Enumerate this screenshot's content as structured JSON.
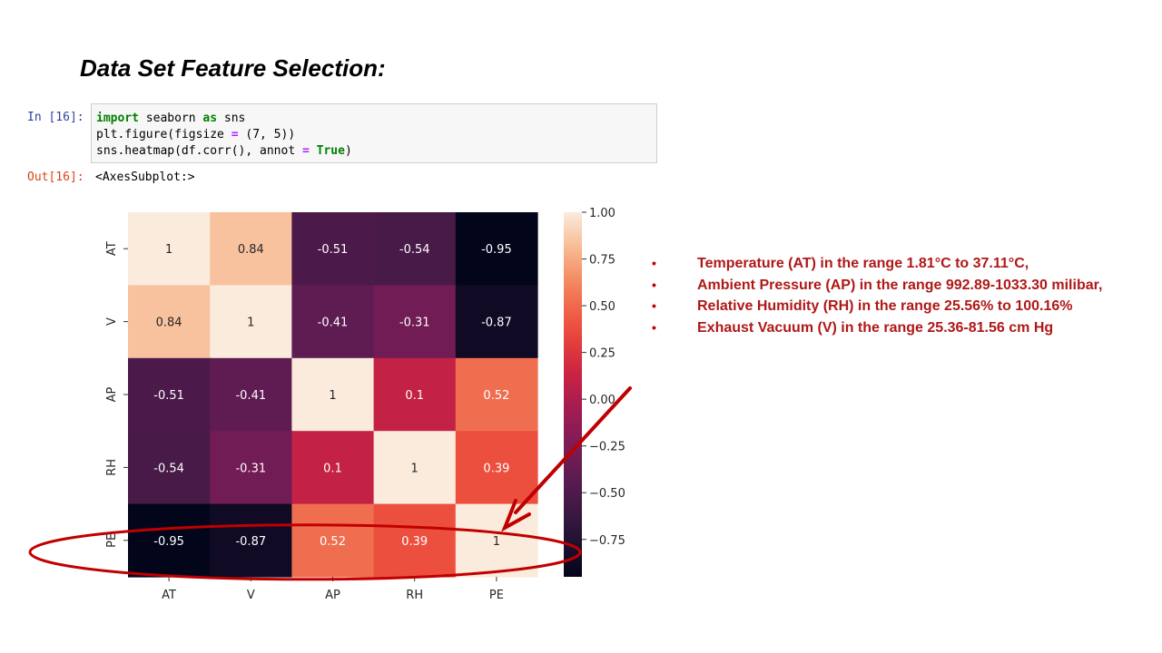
{
  "slide": {
    "title": "Data Set Feature Selection:"
  },
  "notebook": {
    "in_prompt": "In [16]:",
    "code_lines": [
      [
        {
          "t": "import",
          "k": "kw"
        },
        {
          "t": " seaborn ",
          "k": ""
        },
        {
          "t": "as",
          "k": "kw"
        },
        {
          "t": " sns",
          "k": ""
        }
      ],
      [
        {
          "t": "plt.figure(figsize ",
          "k": ""
        },
        {
          "t": "=",
          "k": "op"
        },
        {
          "t": " (7, 5))",
          "k": ""
        }
      ],
      [
        {
          "t": "sns.heatmap(df.corr(), annot ",
          "k": ""
        },
        {
          "t": "=",
          "k": "op"
        },
        {
          "t": " ",
          "k": ""
        },
        {
          "t": "True",
          "k": "kw"
        },
        {
          "t": ")",
          "k": ""
        }
      ]
    ],
    "out_prompt": "Out[16]:",
    "out_text": "<AxesSubplot:>"
  },
  "chart_data": {
    "type": "heatmap",
    "title": "",
    "xlabel": "",
    "ylabel": "",
    "x_categories": [
      "AT",
      "V",
      "AP",
      "RH",
      "PE"
    ],
    "y_categories": [
      "AT",
      "V",
      "AP",
      "RH",
      "PE"
    ],
    "values": [
      [
        1,
        0.84,
        -0.51,
        -0.54,
        -0.95
      ],
      [
        0.84,
        1,
        -0.41,
        -0.31,
        -0.87
      ],
      [
        -0.51,
        -0.41,
        1,
        0.1,
        0.52
      ],
      [
        -0.54,
        -0.31,
        0.1,
        1,
        0.39
      ],
      [
        -0.95,
        -0.87,
        0.52,
        0.39,
        1
      ]
    ],
    "annotations": [
      [
        "1",
        "0.84",
        "-0.51",
        "-0.54",
        "-0.95"
      ],
      [
        "0.84",
        "1",
        "-0.41",
        "-0.31",
        "-0.87"
      ],
      [
        "-0.51",
        "-0.41",
        "1",
        "0.1",
        "0.52"
      ],
      [
        "-0.54",
        "-0.31",
        "0.1",
        "1",
        "0.39"
      ],
      [
        "-0.95",
        "-0.87",
        "0.52",
        "0.39",
        "1"
      ]
    ],
    "colormap": "rocket",
    "vmin": -0.95,
    "vmax": 1.0,
    "colorbar_ticks": [
      1.0,
      0.75,
      0.5,
      0.25,
      0.0,
      -0.25,
      -0.5,
      -0.75
    ],
    "colorbar_tick_labels": [
      "1.00",
      "0.75",
      "0.50",
      "0.25",
      "0.00",
      "−0.25",
      "−0.50",
      "−0.75"
    ],
    "highlighted_row": "PE",
    "annotation_color": "#c00000"
  },
  "notes": {
    "items": [
      "Temperature (AT) in the range 1.81°C to 37.11°C,",
      "Ambient Pressure (AP) in the range 992.89-1033.30 milibar,",
      "Relative Humidity (RH) in the range 25.56% to 100.16%",
      "Exhaust Vacuum (V) in the range 25.36-81.56 cm Hg"
    ],
    "color": "#b01818"
  }
}
